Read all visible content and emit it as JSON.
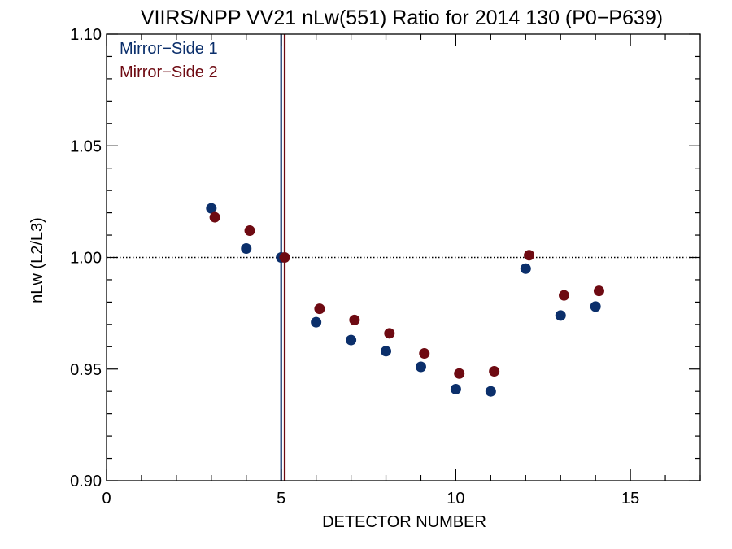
{
  "chart_data": {
    "type": "scatter",
    "title": "VIIRS/NPP VV21 nLw(551) Ratio for 2014 130 (P0−P639)",
    "xlabel": "DETECTOR NUMBER",
    "ylabel": "nLw (L2/L3)",
    "xlim": [
      0,
      17
    ],
    "ylim": [
      0.9,
      1.1
    ],
    "x_ticks": [
      0,
      5,
      10,
      15
    ],
    "x_tick_labels": [
      "0",
      "5",
      "10",
      "15"
    ],
    "y_ticks": [
      0.9,
      0.95,
      1.0,
      1.05,
      1.1
    ],
    "y_tick_labels": [
      "0.90",
      "0.95",
      "1.00",
      "1.05",
      "1.10"
    ],
    "reference_hline": 1.0,
    "legend_position": "top-left",
    "series": [
      {
        "name": "Mirror−Side 1",
        "color": "#0b2f6b",
        "vline_x": 5.0,
        "x": [
          3,
          4,
          5,
          6,
          7,
          8,
          9,
          10,
          11,
          12,
          13,
          14
        ],
        "y": [
          1.022,
          1.004,
          1.0,
          0.971,
          0.963,
          0.958,
          0.951,
          0.941,
          0.94,
          0.995,
          0.974,
          0.978
        ]
      },
      {
        "name": "Mirror−Side 2",
        "color": "#6e0a12",
        "vline_x": 5.1,
        "x": [
          3.1,
          4.1,
          5.1,
          6.1,
          7.1,
          8.1,
          9.1,
          10.1,
          11.1,
          12.1,
          13.1,
          14.1
        ],
        "y": [
          1.018,
          1.012,
          1.0,
          0.977,
          0.972,
          0.966,
          0.957,
          0.948,
          0.949,
          1.001,
          0.983,
          0.985
        ]
      }
    ]
  }
}
